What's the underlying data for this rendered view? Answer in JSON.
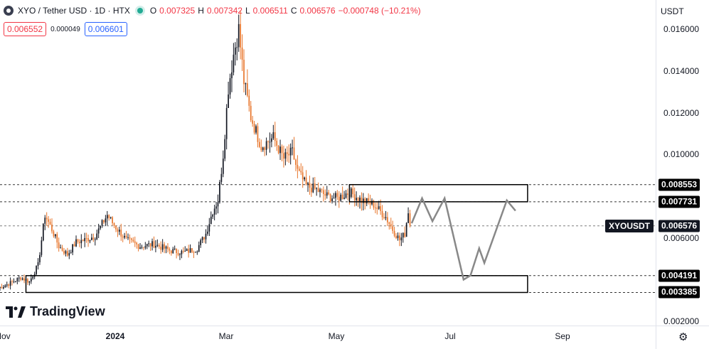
{
  "header": {
    "symbol_title": "XYO / Tether USD · 1D · HTX",
    "icon": "xyo-coin-icon",
    "ohlc": [
      {
        "label": "O",
        "value": "0.007325"
      },
      {
        "label": "H",
        "value": "0.007342"
      },
      {
        "label": "L",
        "value": "0.006511"
      },
      {
        "label": "C",
        "value": "0.006576"
      }
    ],
    "change": "−0.000748 (−10.21%)",
    "bid": "0.006552",
    "spread": "0.000049",
    "ask": "0.006601"
  },
  "axis": {
    "currency": "USDT",
    "settings_icon": "gear-icon"
  },
  "ticker_tag": "XYOUSDT",
  "branding": "TradingView",
  "colors": {
    "up": "#26a69a",
    "down": "#f23645",
    "candle_up": "#131722",
    "candle_down": "#e8762c",
    "projection": "#888888",
    "bid": "#f23645",
    "ask": "#2962ff"
  },
  "chart_data": {
    "type": "candlestick",
    "y_axis": {
      "scale": "linear",
      "ticks": [
        "0.016000",
        "0.014000",
        "0.012000",
        "0.010000",
        "0.006000",
        "0.002000"
      ],
      "ylim": [
        0.0018,
        0.0174
      ]
    },
    "x_axis": {
      "ticks": [
        "Nov",
        "2024",
        "Mar",
        "May",
        "Jul",
        "Sep"
      ],
      "bold_ticks": [
        "2024"
      ]
    },
    "price_labels": [
      {
        "value": "0.008553",
        "style": "black"
      },
      {
        "value": "0.007731",
        "style": "black"
      },
      {
        "value": "0.006576",
        "style": "dark",
        "tag": "XYOUSDT"
      },
      {
        "value": "0.004191",
        "style": "black"
      },
      {
        "value": "0.003385",
        "style": "black"
      }
    ],
    "horizontal_levels": [
      0.008553,
      0.007731,
      0.006576,
      0.004191,
      0.003385
    ],
    "zones": [
      {
        "name": "resistance-zone",
        "low": 0.007731,
        "high": 0.008553,
        "from": "2024-05-20",
        "to": "2024-08-31"
      },
      {
        "name": "support-zone",
        "low": 0.003385,
        "high": 0.004191,
        "from": "2023-11-15",
        "to": "2024-08-31"
      }
    ],
    "projection": [
      {
        "date": "2024-06-25",
        "price": 0.0067
      },
      {
        "date": "2024-07-01",
        "price": 0.0079
      },
      {
        "date": "2024-07-07",
        "price": 0.0068
      },
      {
        "date": "2024-07-14",
        "price": 0.0079
      },
      {
        "date": "2024-07-25",
        "price": 0.004
      },
      {
        "date": "2024-07-29",
        "price": 0.0042
      },
      {
        "date": "2024-08-03",
        "price": 0.0055
      },
      {
        "date": "2024-08-06",
        "price": 0.0048
      },
      {
        "date": "2024-08-19",
        "price": 0.0078
      },
      {
        "date": "2024-08-24",
        "price": 0.0073
      }
    ],
    "price_path": [
      [
        "2023-10-30",
        0.0036
      ],
      [
        "2023-11-05",
        0.0038
      ],
      [
        "2023-11-12",
        0.0041
      ],
      [
        "2023-11-17",
        0.0039
      ],
      [
        "2023-11-22",
        0.0047
      ],
      [
        "2023-11-26",
        0.0071
      ],
      [
        "2023-11-30",
        0.0064
      ],
      [
        "2023-12-04",
        0.0056
      ],
      [
        "2023-12-09",
        0.0052
      ],
      [
        "2023-12-14",
        0.0058
      ],
      [
        "2023-12-19",
        0.0059
      ],
      [
        "2023-12-25",
        0.0061
      ],
      [
        "2024-01-01",
        0.0071
      ],
      [
        "2024-01-05",
        0.0066
      ],
      [
        "2024-01-12",
        0.0059
      ],
      [
        "2024-01-20",
        0.0056
      ],
      [
        "2024-01-28",
        0.0057
      ],
      [
        "2024-02-06",
        0.0054
      ],
      [
        "2024-02-14",
        0.0053
      ],
      [
        "2024-02-22",
        0.0055
      ],
      [
        "2024-02-27",
        0.0062
      ],
      [
        "2024-03-02",
        0.0073
      ],
      [
        "2024-03-05",
        0.0078
      ],
      [
        "2024-03-08",
        0.01
      ],
      [
        "2024-03-11",
        0.0132
      ],
      [
        "2024-03-14",
        0.0148
      ],
      [
        "2024-03-17",
        0.016
      ],
      [
        "2024-03-20",
        0.0135
      ],
      [
        "2024-03-24",
        0.0118
      ],
      [
        "2024-03-30",
        0.0104
      ],
      [
        "2024-04-06",
        0.0108
      ],
      [
        "2024-04-12",
        0.0098
      ],
      [
        "2024-04-17",
        0.0101
      ],
      [
        "2024-04-20",
        0.0092
      ],
      [
        "2024-04-25",
        0.0085
      ],
      [
        "2024-05-01",
        0.0083
      ],
      [
        "2024-05-07",
        0.008
      ],
      [
        "2024-05-13",
        0.0079
      ],
      [
        "2024-05-20",
        0.0082
      ],
      [
        "2024-05-27",
        0.0078
      ],
      [
        "2024-06-03",
        0.0076
      ],
      [
        "2024-06-10",
        0.007
      ],
      [
        "2024-06-14",
        0.0064
      ],
      [
        "2024-06-18",
        0.0059
      ],
      [
        "2024-06-21",
        0.0062
      ],
      [
        "2024-06-23",
        0.0073
      ],
      [
        "2024-06-24",
        0.0066
      ]
    ]
  }
}
